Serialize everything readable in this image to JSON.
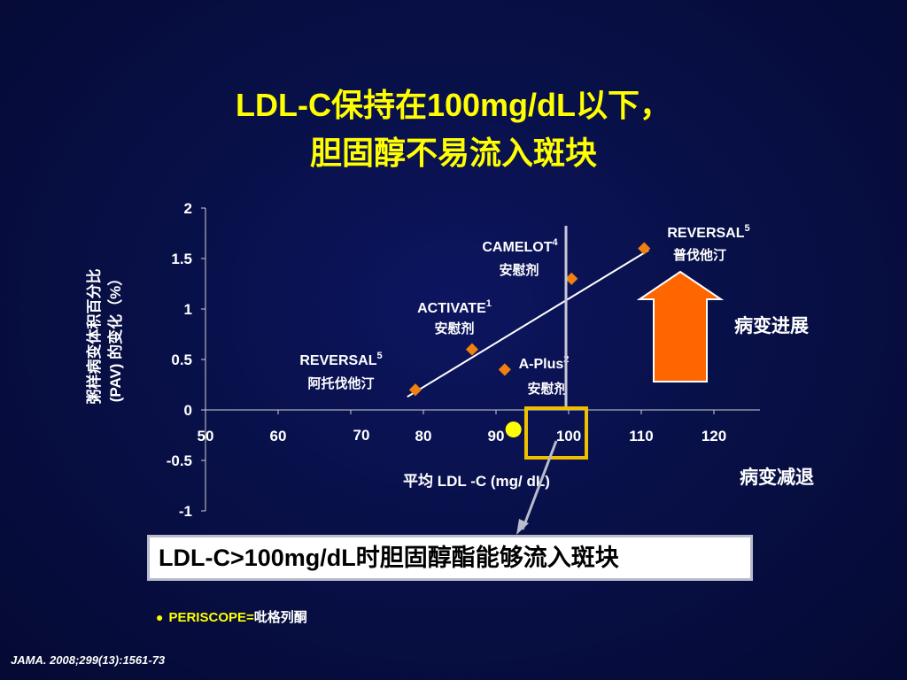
{
  "slide": {
    "title_line1": "LDL-C保持在100mg/dL以下，",
    "title_line2": "胆固醇不易流入斑块",
    "callout": "LDL-C>100mg/dL时胆固醇酯能够流入斑块",
    "footnote_name": "PERISCOPE=",
    "footnote_drug": "吡格列酮",
    "source": "JAMA. 2008;299(13):1561-73",
    "progression_label": "病变进展",
    "regression_label": "病变减退"
  },
  "colors": {
    "title": "#ffff00",
    "marker": "#f08010",
    "arrow": "#ff6600",
    "highlight_box": "#f0c000",
    "trend": "#ffffff",
    "periscope": "#ffff00"
  },
  "chart_data": {
    "type": "scatter",
    "xlabel": "平均 LDL  -C (mg/ dL)",
    "ylabel_line1": "粥样病变体积百分比",
    "ylabel_line2": "(PAV) 的变化（%）",
    "xlim": [
      50,
      125
    ],
    "ylim": [
      -1,
      2
    ],
    "x_ticks": [
      "50",
      "60",
      "70",
      "80",
      "90",
      "100",
      "110",
      "120"
    ],
    "y_ticks": [
      "2",
      "1.5",
      "1",
      "0.5",
      "0",
      "-0.5",
      "-1"
    ],
    "grid": false,
    "points": [
      {
        "x": 78.9,
        "y": 0.2,
        "name": "REVERSAL",
        "sup": "5",
        "drug": "阿托伐他汀"
      },
      {
        "x": 86.7,
        "y": 0.6,
        "name": "ACTIVATE",
        "sup": "1",
        "drug": "安慰剂"
      },
      {
        "x": 91.2,
        "y": 0.4,
        "name": "A-Plus",
        "sup": "2",
        "drug": "安慰剂"
      },
      {
        "x": 100.4,
        "y": 1.3,
        "name": "CAMELOT",
        "sup": "4",
        "drug": "安慰剂"
      },
      {
        "x": 110.4,
        "y": 1.6,
        "name": "REVERSAL",
        "sup": "5",
        "drug": "普伐他汀"
      }
    ],
    "periscope_point": {
      "x": 92.4,
      "y": -0.15
    },
    "trendline": {
      "x": [
        79,
        111
      ],
      "y": [
        0.2,
        1.6
      ]
    },
    "vertical_line_x": 100
  }
}
